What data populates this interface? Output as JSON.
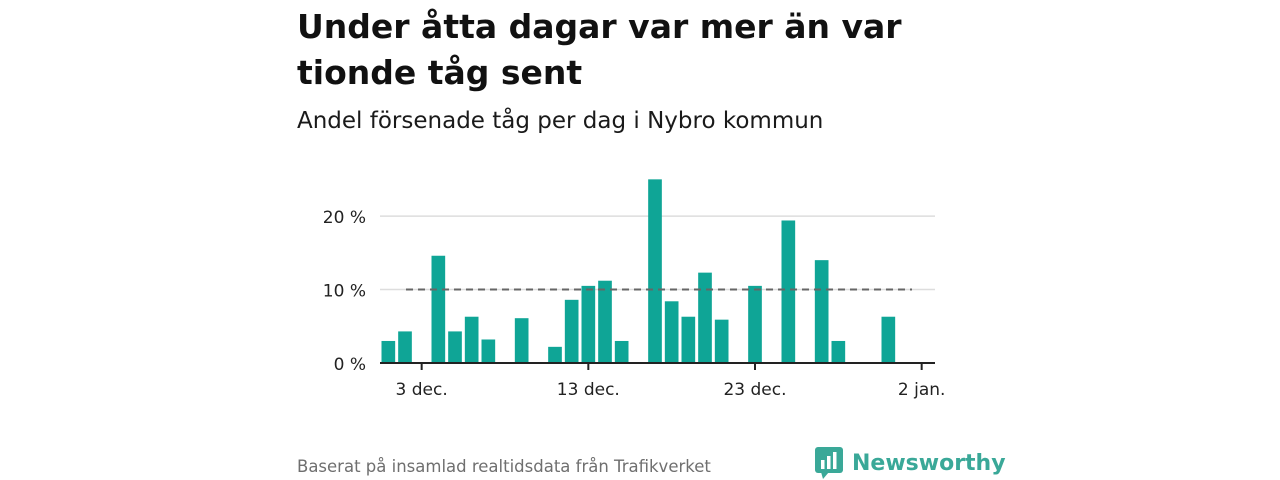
{
  "title": "Under åtta dagar var mer än var tionde tåg sent",
  "subtitle": "Andel försenade tåg per dag i Nybro kommun",
  "source": "Baserat på insamlad realtidsdata från Trafikverket",
  "brand": "Newsworthy",
  "colors": {
    "bar": "#0fa596",
    "reference_line": "#666666",
    "grid": "#dddddd",
    "axis": "#222222",
    "brand": "#3aa898"
  },
  "chart_data": {
    "type": "bar",
    "x_start_date": "2023-12-01",
    "x_range_days": [
      -0.5,
      32.8
    ],
    "ylim": [
      0,
      26
    ],
    "y_ticks": [
      {
        "value": 0,
        "label": "0 %"
      },
      {
        "value": 10,
        "label": "10 %"
      },
      {
        "value": 20,
        "label": "20 %"
      }
    ],
    "x_ticks": [
      {
        "day": 2,
        "label": "3 dec."
      },
      {
        "day": 12,
        "label": "13 dec."
      },
      {
        "day": 22,
        "label": "23 dec."
      },
      {
        "day": 32,
        "label": "2 jan."
      }
    ],
    "reference_line": {
      "value": 10,
      "style": "dashed"
    },
    "grid": true,
    "values": [
      3.0,
      4.3,
      null,
      14.6,
      4.3,
      6.3,
      3.2,
      null,
      6.1,
      null,
      2.2,
      8.6,
      10.5,
      11.2,
      3.0,
      null,
      25.0,
      8.4,
      6.3,
      12.3,
      5.9,
      null,
      10.5,
      null,
      19.4,
      null,
      14.0,
      3.0,
      null,
      null,
      6.3
    ]
  }
}
